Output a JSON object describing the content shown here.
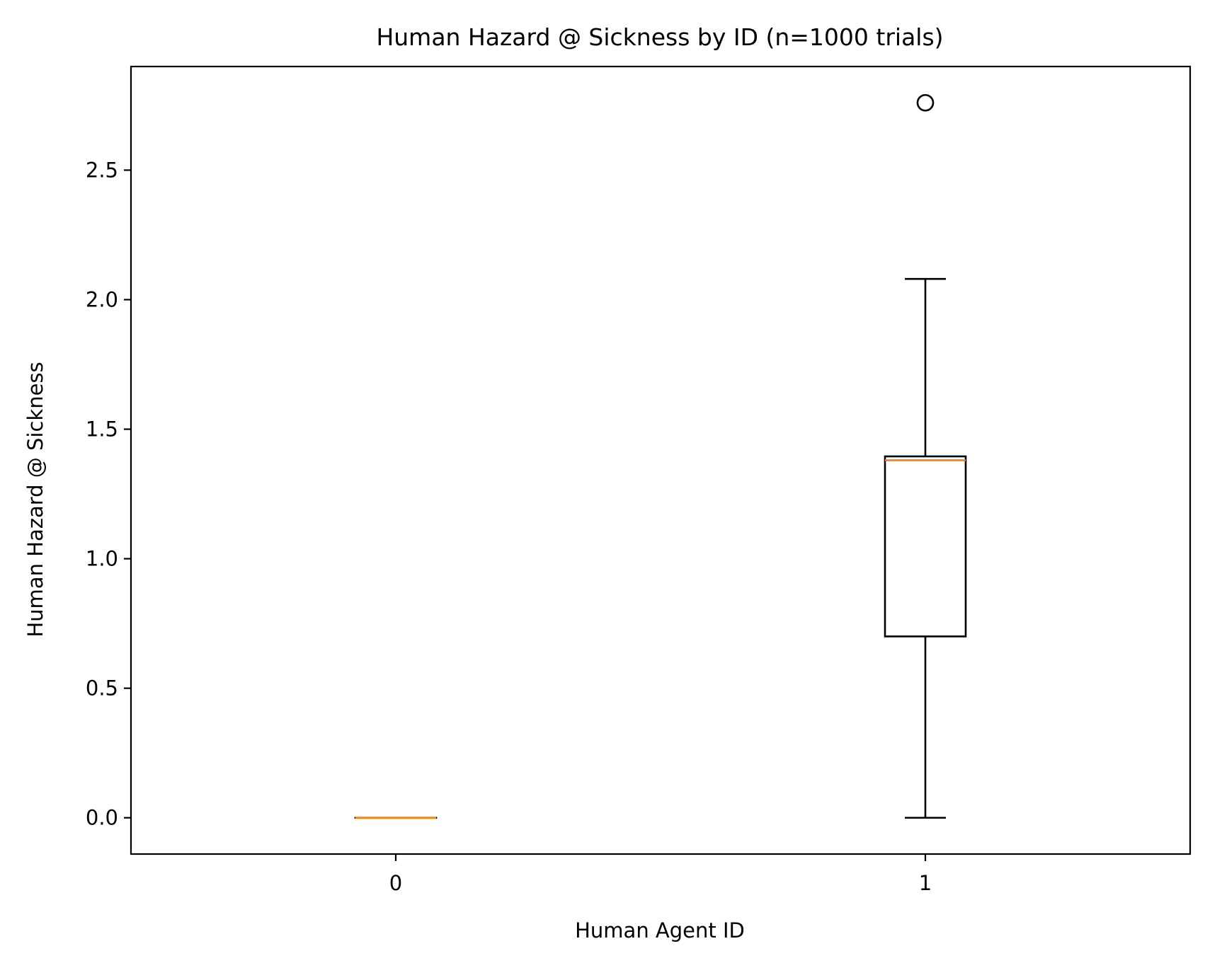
{
  "chart_data": {
    "type": "box",
    "title": "Human Hazard @ Sickness by ID (n=1000 trials)",
    "xlabel": "Human Agent ID",
    "ylabel": "Human Hazard @ Sickness",
    "categories": [
      "0",
      "1"
    ],
    "ylim": [
      -0.14,
      2.9
    ],
    "yticks": [
      0.0,
      0.5,
      1.0,
      1.5,
      2.0,
      2.5
    ],
    "ytick_labels": [
      "0.0",
      "0.5",
      "1.0",
      "1.5",
      "2.0",
      "2.5"
    ],
    "boxes": [
      {
        "category": "0",
        "whisker_low": 0.0,
        "q1": 0.0,
        "median": 0.0,
        "q3": 0.0,
        "whisker_high": 0.0,
        "outliers": []
      },
      {
        "category": "1",
        "whisker_low": 0.0,
        "q1": 0.7,
        "median": 1.38,
        "q3": 1.395,
        "whisker_high": 2.08,
        "outliers": [
          2.76
        ]
      }
    ],
    "grid": false,
    "colors": {
      "box": "#000000",
      "median": "#ff7f0e",
      "outlier": "#000000"
    }
  }
}
